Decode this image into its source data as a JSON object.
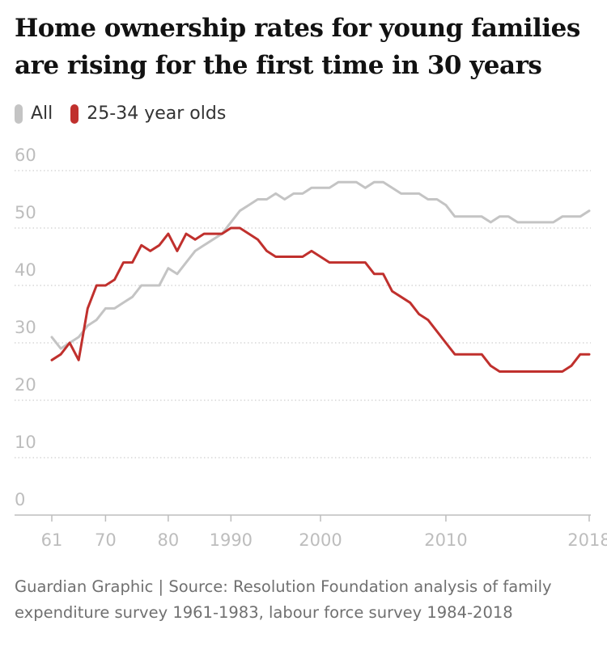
{
  "chart_data": {
    "type": "line",
    "title": "Home ownership rates for young families are rising for the first time in 30 years",
    "source": "Guardian Graphic | Source: Resolution Foundation analysis of family expenditure survey 1961-1983, labour force survey 1984-2018",
    "categories": [
      "61",
      null,
      null,
      null,
      null,
      null,
      "70",
      null,
      null,
      null,
      null,
      null,
      null,
      "80",
      null,
      null,
      null,
      null,
      null,
      null,
      "1990",
      null,
      null,
      null,
      null,
      null,
      null,
      null,
      null,
      null,
      "2000",
      null,
      null,
      null,
      null,
      null,
      null,
      null,
      null,
      null,
      null,
      null,
      null,
      null,
      "2010",
      null,
      null,
      null,
      null,
      null,
      null,
      null,
      null,
      null,
      null,
      null,
      null,
      null,
      null,
      null,
      "2018"
    ],
    "series": [
      {
        "name": "All",
        "color": "#c4c4c4",
        "values": [
          31,
          29,
          30,
          31,
          33,
          34,
          36,
          36,
          37,
          38,
          40,
          40,
          40,
          43,
          42,
          44,
          46,
          47,
          48,
          49,
          51,
          53,
          54,
          55,
          55,
          56,
          55,
          56,
          56,
          57,
          57,
          57,
          58,
          58,
          58,
          57,
          58,
          58,
          57,
          56,
          56,
          56,
          55,
          55,
          54,
          52,
          52,
          52,
          52,
          51,
          52,
          52,
          51,
          51,
          51,
          51,
          51,
          52,
          52,
          52,
          53
        ]
      },
      {
        "name": "25-34 year olds",
        "color": "#c0302d",
        "values": [
          27,
          28,
          30,
          27,
          36,
          40,
          40,
          41,
          44,
          44,
          47,
          46,
          47,
          49,
          46,
          49,
          48,
          49,
          49,
          49,
          50,
          50,
          49,
          48,
          46,
          45,
          45,
          45,
          45,
          46,
          45,
          44,
          44,
          44,
          44,
          44,
          42,
          42,
          39,
          38,
          37,
          35,
          34,
          32,
          30,
          28,
          28,
          28,
          28,
          26,
          25,
          25,
          25,
          25,
          25,
          25,
          25,
          25,
          26,
          28,
          28
        ]
      }
    ],
    "ylim": [
      0,
      60
    ],
    "yticks": [
      0,
      10,
      20,
      30,
      40,
      50,
      60
    ],
    "grid": true
  }
}
